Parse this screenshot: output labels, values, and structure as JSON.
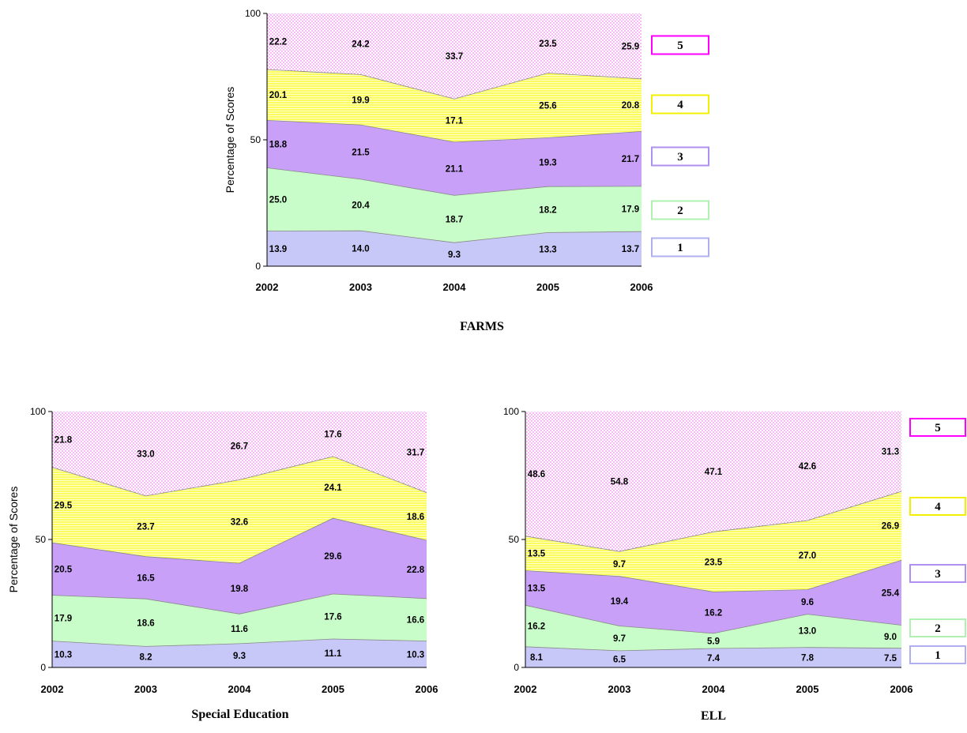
{
  "colors": {
    "level1": "#c8c8f8",
    "level2": "#c8fcc8",
    "level3": "#c8a0f8",
    "level4": "#fcfc50",
    "level5_dot": "#ec5ce8",
    "legend_border1": "#b0b0f0",
    "legend_border2": "#b0f0b0",
    "legend_border3": "#b090f0",
    "legend_border4": "#f0f000",
    "legend_border5": "#ff00ff"
  },
  "chart_data": [
    {
      "type": "area",
      "title": "FARMS",
      "ylabel": "Percentage of Scores",
      "ylim": [
        0,
        100
      ],
      "yticks": [
        "0",
        "50",
        "100"
      ],
      "categories": [
        "2002",
        "2003",
        "2004",
        "2005",
        "2006"
      ],
      "series": [
        {
          "name": "1",
          "values": [
            13.9,
            14.0,
            9.3,
            13.3,
            13.7
          ],
          "labels": [
            "13.9",
            "14.0",
            "9.3",
            "13.3",
            "13.7"
          ]
        },
        {
          "name": "2",
          "values": [
            25.0,
            20.4,
            18.7,
            18.2,
            17.9
          ],
          "labels": [
            "25.0",
            "20.4",
            "18.7",
            "18.2",
            "17.9"
          ]
        },
        {
          "name": "3",
          "values": [
            18.8,
            21.5,
            21.1,
            19.3,
            21.7
          ],
          "labels": [
            "18.8",
            "21.5",
            "21.1",
            "19.3",
            "21.7"
          ]
        },
        {
          "name": "4",
          "values": [
            20.1,
            19.9,
            17.1,
            25.6,
            20.8
          ],
          "labels": [
            "20.1",
            "19.9",
            "17.1",
            "25.6",
            "20.8"
          ]
        },
        {
          "name": "5",
          "values": [
            22.2,
            24.2,
            33.7,
            23.5,
            25.9
          ],
          "labels": [
            "22.2",
            "24.2",
            "33.7",
            "23.5",
            "25.9"
          ]
        }
      ],
      "legend": [
        "5",
        "4",
        "3",
        "2",
        "1"
      ],
      "legend_placement": "right"
    },
    {
      "type": "area",
      "title": "Special Education",
      "ylabel": "Percentage of Scores",
      "ylim": [
        0,
        100
      ],
      "yticks": [
        "0",
        "50",
        "100"
      ],
      "categories": [
        "2002",
        "2003",
        "2004",
        "2005",
        "2006"
      ],
      "series": [
        {
          "name": "1",
          "values": [
            10.3,
            8.2,
            9.3,
            11.1,
            10.3
          ],
          "labels": [
            "10.3",
            "8.2",
            "9.3",
            "11.1",
            "10.3"
          ]
        },
        {
          "name": "2",
          "values": [
            17.9,
            18.6,
            11.6,
            17.6,
            16.6
          ],
          "labels": [
            "17.9",
            "18.6",
            "11.6",
            "17.6",
            "16.6"
          ]
        },
        {
          "name": "3",
          "values": [
            20.5,
            16.5,
            19.8,
            29.6,
            22.8
          ],
          "labels": [
            "20.5",
            "16.5",
            "19.8",
            "29.6",
            "22.8"
          ]
        },
        {
          "name": "4",
          "values": [
            29.5,
            23.7,
            32.6,
            24.1,
            18.6
          ],
          "labels": [
            "29.5",
            "23.7",
            "32.6",
            "24.1",
            "18.6"
          ]
        },
        {
          "name": "5",
          "values": [
            21.8,
            33.0,
            26.7,
            17.6,
            31.7
          ],
          "labels": [
            "21.8",
            "33.0",
            "26.7",
            "17.6",
            "31.7"
          ]
        }
      ],
      "legend": [],
      "legend_placement": "none"
    },
    {
      "type": "area",
      "title": "ELL",
      "ylabel": "",
      "ylim": [
        0,
        100
      ],
      "yticks": [
        "0",
        "50",
        "100"
      ],
      "categories": [
        "2002",
        "2003",
        "2004",
        "2005",
        "2006"
      ],
      "series": [
        {
          "name": "1",
          "values": [
            8.1,
            6.5,
            7.4,
            7.8,
            7.5
          ],
          "labels": [
            "8.1",
            "6.5",
            "7.4",
            "7.8",
            "7.5"
          ]
        },
        {
          "name": "2",
          "values": [
            16.2,
            9.7,
            5.9,
            13.0,
            9.0
          ],
          "labels": [
            "16.2",
            "9.7",
            "5.9",
            "13.0",
            "9.0"
          ]
        },
        {
          "name": "3",
          "values": [
            13.5,
            19.4,
            16.2,
            9.6,
            25.4
          ],
          "labels": [
            "13.5",
            "19.4",
            "16.2",
            "9.6",
            "25.4"
          ]
        },
        {
          "name": "4",
          "values": [
            13.5,
            9.7,
            23.5,
            27.0,
            26.9
          ],
          "labels": [
            "13.5",
            "9.7",
            "23.5",
            "27.0",
            "26.9"
          ]
        },
        {
          "name": "5",
          "values": [
            48.6,
            54.8,
            47.1,
            42.6,
            31.3
          ],
          "labels": [
            "48.6",
            "54.8",
            "47.1",
            "42.6",
            "31.3"
          ]
        }
      ],
      "legend": [
        "5",
        "4",
        "3",
        "2",
        "1"
      ],
      "legend_placement": "right"
    }
  ]
}
